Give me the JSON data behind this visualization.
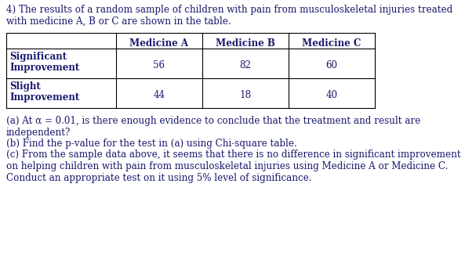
{
  "intro_text_line1": "4) The results of a random sample of children with pain from musculoskeletal injuries treated",
  "intro_text_line2": "with medicine A, B or C are shown in the table.",
  "col_headers": [
    "Medicine A",
    "Medicine B",
    "Medicine C"
  ],
  "row_headers": [
    [
      "Significant",
      "Improvement"
    ],
    [
      "Slight",
      "Improvement"
    ]
  ],
  "table_data": [
    [
      56,
      82,
      60
    ],
    [
      44,
      18,
      40
    ]
  ],
  "question_a_line1": "(a) At α = 0.01, is there enough evidence to conclude that the treatment and result are",
  "question_a_line2": "independent?",
  "question_b": "(b) Find the p-value for the test in (a) using Chi-square table.",
  "question_c_line1": "(c) From the sample data above, it seems that there is no difference in significant improvement",
  "question_c_line2": "on helping children with pain from musculoskeletal injuries using Medicine A or Medicine C.",
  "question_c_line3": "Conduct an appropriate test on it using 5% level of significance.",
  "text_color": "#1a1a6e",
  "bg_color": "#ffffff",
  "font_size": 8.6
}
